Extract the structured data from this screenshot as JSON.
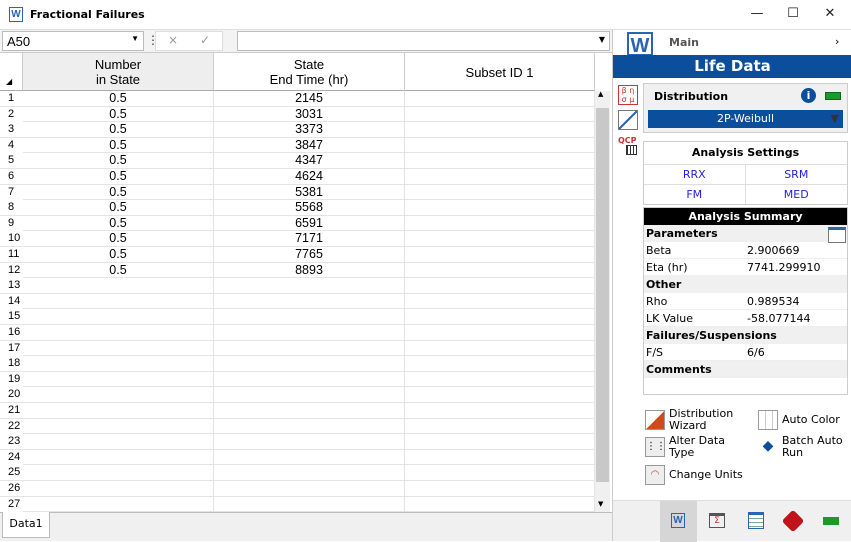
{
  "window": {
    "title": "Fractional Failures",
    "minimize": "—",
    "maximize": "☐",
    "close": "✕"
  },
  "formula_bar": {
    "cell_ref": "A50",
    "cancel": "×",
    "accept": "✓",
    "value": ""
  },
  "grid": {
    "columns": [
      {
        "line1": "Number",
        "line2": "in State"
      },
      {
        "line1": "State",
        "line2": "End Time (hr)"
      },
      {
        "line1": "",
        "line2": "Subset ID 1"
      }
    ],
    "rows": [
      [
        "0.5",
        "2145",
        ""
      ],
      [
        "0.5",
        "3031",
        ""
      ],
      [
        "0.5",
        "3373",
        ""
      ],
      [
        "0.5",
        "3847",
        ""
      ],
      [
        "0.5",
        "4347",
        ""
      ],
      [
        "0.5",
        "4624",
        ""
      ],
      [
        "0.5",
        "5381",
        ""
      ],
      [
        "0.5",
        "5568",
        ""
      ],
      [
        "0.5",
        "6591",
        ""
      ],
      [
        "0.5",
        "7171",
        ""
      ],
      [
        "0.5",
        "7765",
        ""
      ],
      [
        "0.5",
        "8893",
        ""
      ],
      [
        "",
        "",
        ""
      ],
      [
        "",
        "",
        ""
      ],
      [
        "",
        "",
        ""
      ],
      [
        "",
        "",
        ""
      ],
      [
        "",
        "",
        ""
      ],
      [
        "",
        "",
        ""
      ],
      [
        "",
        "",
        ""
      ],
      [
        "",
        "",
        ""
      ],
      [
        "",
        "",
        ""
      ],
      [
        "",
        "",
        ""
      ],
      [
        "",
        "",
        ""
      ],
      [
        "",
        "",
        ""
      ],
      [
        "",
        "",
        ""
      ],
      [
        "",
        "",
        ""
      ],
      [
        "",
        "",
        ""
      ]
    ]
  },
  "sheet_tabs": [
    "Data1"
  ],
  "panel": {
    "main_label": "Main",
    "title": "Life Data",
    "accent": "#0b4f9c",
    "distribution_label": "Distribution",
    "distribution_value": "2P-Weibull",
    "side_icons": {
      "params": "β η σ μ",
      "qcp": "QCP"
    },
    "analysis_settings_label": "Analysis Settings",
    "settings": [
      "RRX",
      "SRM",
      "FM",
      "MED"
    ],
    "summary_title": "Analysis Summary",
    "sections": [
      {
        "title": "Parameters",
        "items": [
          [
            "Beta",
            "2.900669"
          ],
          [
            "Eta (hr)",
            "7741.299910"
          ]
        ]
      },
      {
        "title": "Other",
        "items": [
          [
            "Rho",
            "0.989534"
          ],
          [
            "LK Value",
            "-58.077144"
          ]
        ]
      },
      {
        "title": "Failures/Suspensions",
        "items": [
          [
            "F/S",
            "6/6"
          ]
        ]
      },
      {
        "title": "Comments",
        "items": []
      }
    ],
    "tools": [
      {
        "label1": "Distribution",
        "label2": "Wizard"
      },
      {
        "label1": "Auto Color",
        "label2": ""
      },
      {
        "label1": "Alter Data",
        "label2": "Type"
      },
      {
        "label1": "Batch Auto",
        "label2": "Run"
      },
      {
        "label1": "Change Units",
        "label2": ""
      }
    ]
  }
}
